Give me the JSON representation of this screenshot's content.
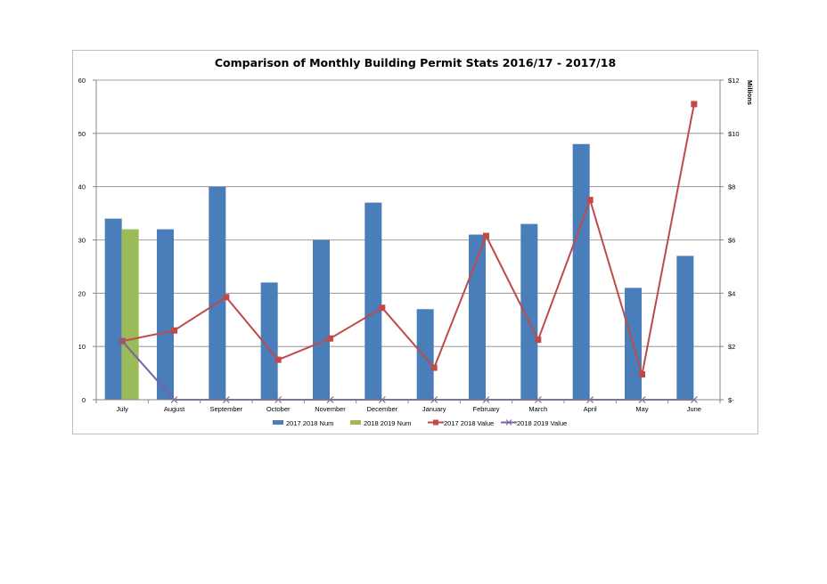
{
  "chart_data": {
    "type": "bar",
    "title": "Comparison of Monthly Building Permit Stats 2016/17 - 2017/18",
    "categories": [
      "July",
      "August",
      "September",
      "October",
      "November",
      "December",
      "January",
      "February",
      "March",
      "April",
      "May",
      "June"
    ],
    "bar_series": [
      {
        "name": "2017 2018 Num",
        "color": "#4a7ebb",
        "values": [
          34,
          32,
          40,
          22,
          30,
          37,
          17,
          31,
          33,
          48,
          21,
          27
        ]
      },
      {
        "name": "2018 2019 Num",
        "color": "#9bbb59",
        "values": [
          32,
          null,
          null,
          null,
          null,
          null,
          null,
          null,
          null,
          null,
          null,
          null
        ]
      }
    ],
    "line_series": [
      {
        "name": "2017 2018 Value",
        "color": "#be4b48",
        "marker": "square",
        "values": [
          2.2,
          2.6,
          3.85,
          1.5,
          2.3,
          3.45,
          1.2,
          6.15,
          2.25,
          7.5,
          0.95,
          11.1
        ]
      },
      {
        "name": "2018 2019 Value",
        "color": "#7d60a0",
        "marker": "x",
        "values": [
          2.2,
          0,
          0,
          0,
          0,
          0,
          0,
          0,
          0,
          0,
          0,
          0
        ]
      }
    ],
    "y_left": {
      "ylim": [
        0,
        60
      ],
      "ticks": [
        "0",
        "10",
        "20",
        "30",
        "40",
        "50",
        "60"
      ]
    },
    "y_right": {
      "ylim": [
        0,
        12
      ],
      "ticks": [
        "$-",
        "$2",
        "$4",
        "$6",
        "$8",
        "$10",
        "$12"
      ],
      "unit_label": "Millions"
    },
    "grid": true,
    "legend_position": "bottom"
  }
}
